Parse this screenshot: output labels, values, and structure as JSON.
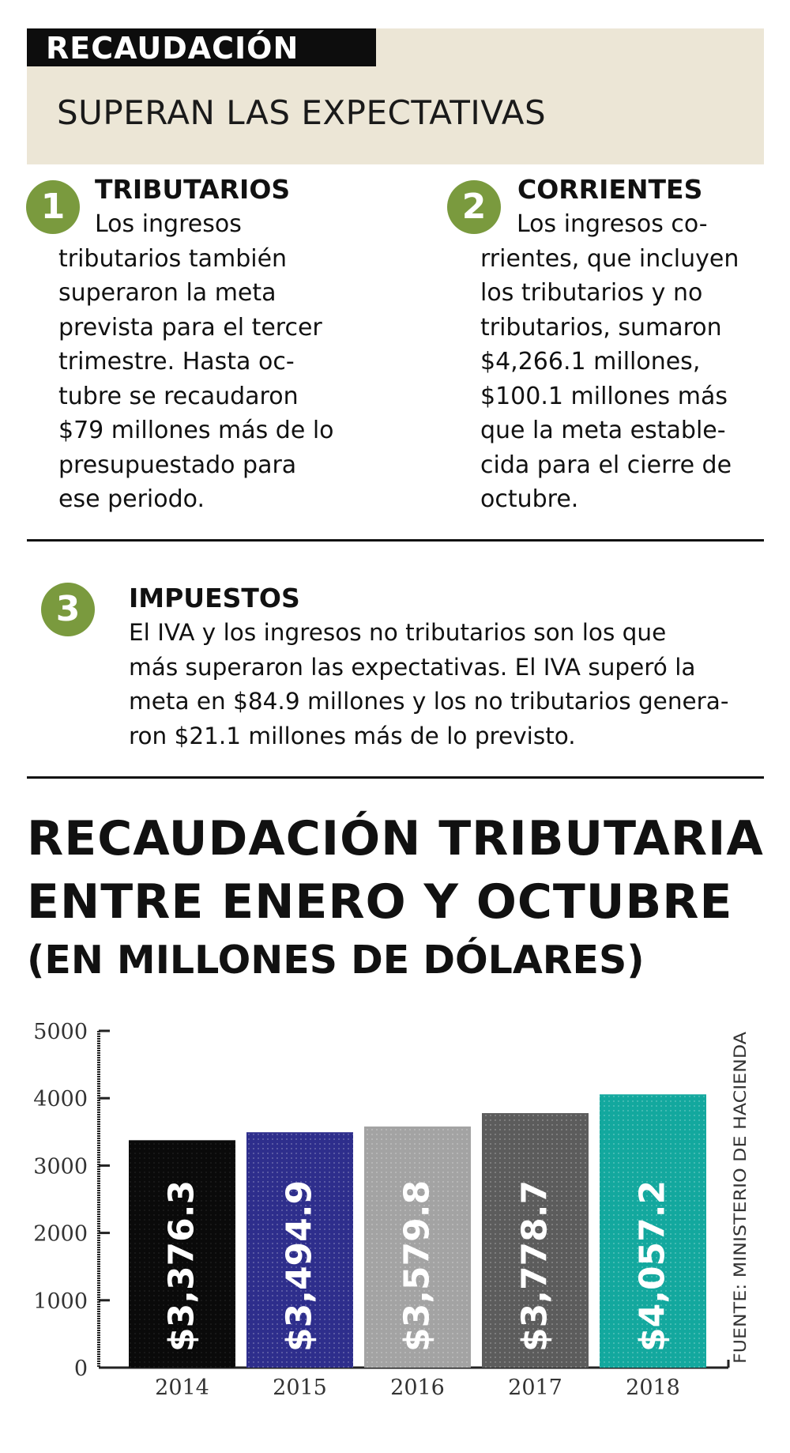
{
  "header": {
    "tag": "RECAUDACIÓN",
    "subtitle": "SUPERAN LAS EXPECTATIVAS"
  },
  "blocks": [
    {
      "number": "1",
      "title": "TRIBUTARIOS",
      "lines": [
        "Los ingresos",
        "tributarios también",
        "superaron la meta",
        "prevista para el tercer",
        "trimestre. Hasta oc-",
        "tubre se recaudaron",
        "$79 millones más de lo",
        "presupuestado para",
        "ese periodo."
      ]
    },
    {
      "number": "2",
      "title": "CORRIENTES",
      "lines": [
        "Los ingresos co-",
        "rrientes, que incluyen",
        "los tributarios y no",
        "tributarios, sumaron",
        "$4,266.1 millones,",
        "$100.1 millones más",
        "que la meta estable-",
        "cida para el cierre de",
        "octubre."
      ]
    },
    {
      "number": "3",
      "title": "IMPUESTOS",
      "lines": [
        "El IVA y los ingresos no tributarios son los que",
        "más superaron las expectativas. El IVA superó la",
        "meta en $84.9 millones y los no tributarios genera-",
        "ron $21.1 millones más de lo previsto."
      ]
    }
  ],
  "chart_title": {
    "line1": "RECAUDACIÓN TRIBUTARIA",
    "line2": "ENTRE ENERO Y OCTUBRE",
    "line3": "(EN MILLONES DE DÓLARES)"
  },
  "chart_data": {
    "type": "bar",
    "categories": [
      "2014",
      "2015",
      "2016",
      "2017",
      "2018"
    ],
    "values": [
      3376.3,
      3494.9,
      3579.8,
      3778.7,
      4057.2
    ],
    "data_labels": [
      "$3,376.3",
      "$3,494.9",
      "$3,579.8",
      "$3,778.7",
      "$4,057.2"
    ],
    "bar_colors": [
      "#0a0a0a",
      "#2e2e8c",
      "#a3a3a3",
      "#5c5c5c",
      "#13a89e"
    ],
    "label_colors": [
      "#ffffff",
      "#ffffff",
      "#ffffff",
      "#ffffff",
      "#ffffff"
    ],
    "ylim": [
      0,
      5000
    ],
    "yticks": [
      "0",
      "1000",
      "2000",
      "3000",
      "4000",
      "5000"
    ],
    "source": "FUENTE: MINISTERIO DE HACIENDA"
  }
}
